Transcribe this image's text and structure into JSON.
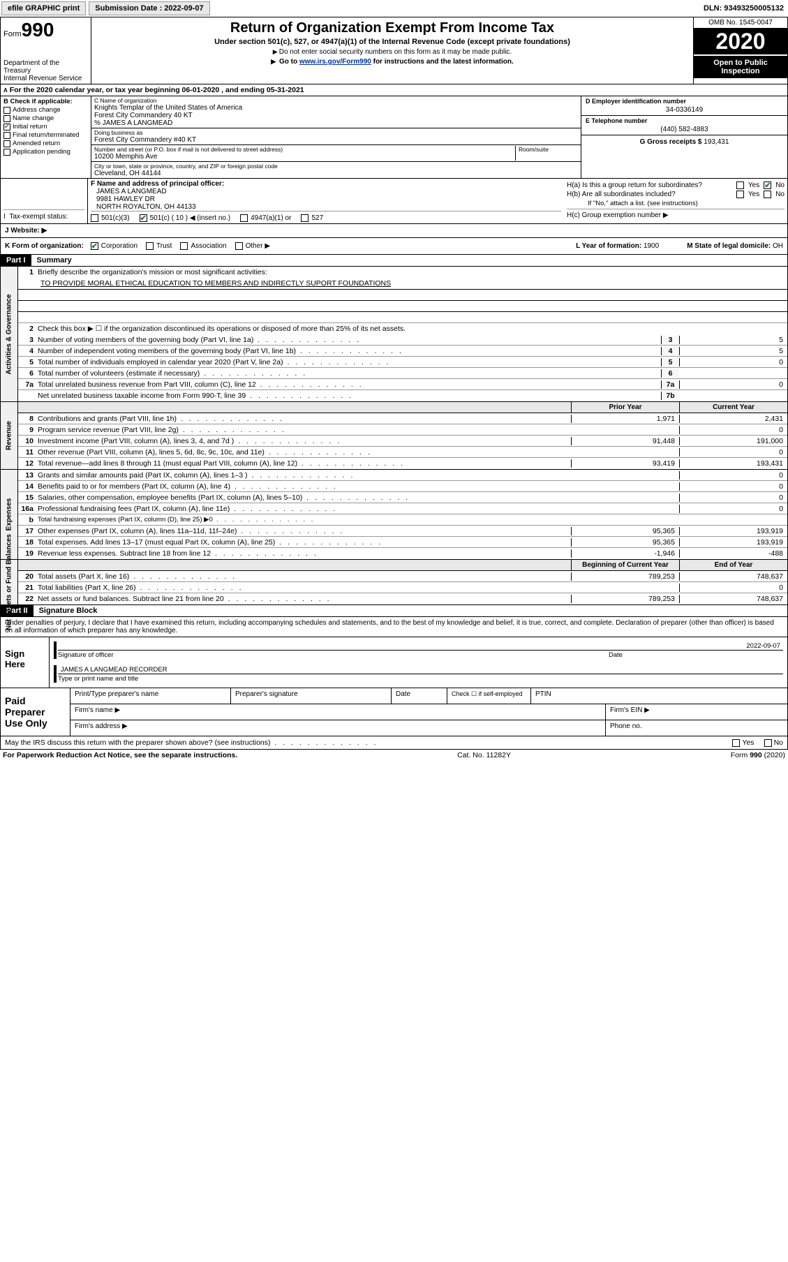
{
  "topbar": {
    "efile": "efile GRAPHIC print",
    "submission_label": "Submission Date : 2022-09-07",
    "dln": "DLN: 93493250005132"
  },
  "header": {
    "form_label": "Form",
    "form_number": "990",
    "dept": "Department of the Treasury\nInternal Revenue Service",
    "title": "Return of Organization Exempt From Income Tax",
    "subtitle": "Under section 501(c), 527, or 4947(a)(1) of the Internal Revenue Code (except private foundations)",
    "note1": "Do not enter social security numbers on this form as it may be made public.",
    "note2_prefix": "Go to ",
    "note2_link": "www.irs.gov/Form990",
    "note2_suffix": " for instructions and the latest information.",
    "omb": "OMB No. 1545-0047",
    "year": "2020",
    "open": "Open to Public Inspection"
  },
  "row_a": "For the 2020 calendar year, or tax year beginning 06-01-2020    , and ending 05-31-2021",
  "section_b": {
    "label": "B Check if applicable:",
    "items": [
      "Address change",
      "Name change",
      "Initial return",
      "Final return/terminated",
      "Amended return",
      "Application pending"
    ],
    "checked_idx": 2
  },
  "section_c": {
    "name_label": "C Name of organization",
    "name1": "Knights Templar of the United States of America",
    "name2": "Forest City Commandery 40 KT",
    "name3": "% JAMES A LANGMEAD",
    "dba_label": "Doing business as",
    "dba": "Forest City Commandery #40 KT",
    "addr_label": "Number and street (or P.O. box if mail is not delivered to street address)",
    "room_label": "Room/suite",
    "addr": "10200 Memphis Ave",
    "city_label": "City or town, state or province, country, and ZIP or foreign postal code",
    "city": "Cleveland, OH  44144"
  },
  "section_d": {
    "label": "D Employer identification number",
    "value": "34-0336149"
  },
  "section_e": {
    "label": "E Telephone number",
    "value": "(440) 582-4883"
  },
  "section_g": {
    "label": "G Gross receipts $",
    "value": "193,431"
  },
  "section_f": {
    "label": "F  Name and address of principal officer:",
    "name": "JAMES A LANGMEAD",
    "addr1": "9981 HAWLEY DR",
    "addr2": "NORTH ROYALTON, OH  44133"
  },
  "section_h": {
    "ha": "H(a)  Is this a group return for subordinates?",
    "hb": "H(b)  Are all subordinates included?",
    "hb_note": "If \"No,\" attach a list. (see instructions)",
    "hc": "H(c)  Group exemption number ▶",
    "yes": "Yes",
    "no": "No"
  },
  "row_i": {
    "label": "I   Tax-exempt status:",
    "opts": [
      "501(c)(3)",
      "501(c) ( 10 ) ◀ (insert no.)",
      "4947(a)(1) or",
      "527"
    ],
    "checked_idx": 1
  },
  "row_j": {
    "label": "J   Website: ▶"
  },
  "row_k": {
    "label": "K Form of organization:",
    "opts": [
      "Corporation",
      "Trust",
      "Association",
      "Other ▶"
    ],
    "checked_idx": 0,
    "l_label": "L Year of formation:",
    "l_val": "1900",
    "m_label": "M State of legal domicile:",
    "m_val": "OH"
  },
  "parts": {
    "p1": "Part I",
    "p1t": "Summary",
    "p2": "Part II",
    "p2t": "Signature Block"
  },
  "summary": {
    "q1": "Briefly describe the organization's mission or most significant activities:",
    "mission": "TO PROVIDE MORAL ETHICAL EDUCATION TO MEMBERS AND INDIRECTLY SUPORT FOUNDATIONS",
    "q2": "Check this box ▶ ☐  if the organization discontinued its operations or disposed of more than 25% of its net assets.",
    "lines_gov": [
      {
        "n": "3",
        "t": "Number of voting members of the governing body (Part VI, line 1a)",
        "m": "3",
        "v": "5"
      },
      {
        "n": "4",
        "t": "Number of independent voting members of the governing body (Part VI, line 1b)",
        "m": "4",
        "v": "5"
      },
      {
        "n": "5",
        "t": "Total number of individuals employed in calendar year 2020 (Part V, line 2a)",
        "m": "5",
        "v": "0"
      },
      {
        "n": "6",
        "t": "Total number of volunteers (estimate if necessary)",
        "m": "6",
        "v": ""
      },
      {
        "n": "7a",
        "t": "Total unrelated business revenue from Part VIII, column (C), line 12",
        "m": "7a",
        "v": "0"
      },
      {
        "n": "",
        "t": "Net unrelated business taxable income from Form 990-T, line 39",
        "m": "7b",
        "v": ""
      }
    ],
    "col_prior": "Prior Year",
    "col_curr": "Current Year",
    "lines_rev": [
      {
        "n": "8",
        "t": "Contributions and grants (Part VIII, line 1h)",
        "p": "1,971",
        "c": "2,431"
      },
      {
        "n": "9",
        "t": "Program service revenue (Part VIII, line 2g)",
        "p": "",
        "c": "0"
      },
      {
        "n": "10",
        "t": "Investment income (Part VIII, column (A), lines 3, 4, and 7d )",
        "p": "91,448",
        "c": "191,000"
      },
      {
        "n": "11",
        "t": "Other revenue (Part VIII, column (A), lines 5, 6d, 8c, 9c, 10c, and 11e)",
        "p": "",
        "c": "0"
      },
      {
        "n": "12",
        "t": "Total revenue—add lines 8 through 11 (must equal Part VIII, column (A), line 12)",
        "p": "93,419",
        "c": "193,431"
      }
    ],
    "lines_exp": [
      {
        "n": "13",
        "t": "Grants and similar amounts paid (Part IX, column (A), lines 1–3 )",
        "p": "",
        "c": "0"
      },
      {
        "n": "14",
        "t": "Benefits paid to or for members (Part IX, column (A), line 4)",
        "p": "",
        "c": "0"
      },
      {
        "n": "15",
        "t": "Salaries, other compensation, employee benefits (Part IX, column (A), lines 5–10)",
        "p": "",
        "c": "0"
      },
      {
        "n": "16a",
        "t": "Professional fundraising fees (Part IX, column (A), line 11e)",
        "p": "",
        "c": "0"
      },
      {
        "n": "b",
        "t": "Total fundraising expenses (Part IX, column (D), line 25) ▶0",
        "p": "—",
        "c": "—"
      },
      {
        "n": "17",
        "t": "Other expenses (Part IX, column (A), lines 11a–11d, 11f–24e)",
        "p": "95,365",
        "c": "193,919"
      },
      {
        "n": "18",
        "t": "Total expenses. Add lines 13–17 (must equal Part IX, column (A), line 25)",
        "p": "95,365",
        "c": "193,919"
      },
      {
        "n": "19",
        "t": "Revenue less expenses. Subtract line 18 from line 12",
        "p": "-1,946",
        "c": "-488"
      }
    ],
    "col_beg": "Beginning of Current Year",
    "col_end": "End of Year",
    "lines_na": [
      {
        "n": "20",
        "t": "Total assets (Part X, line 16)",
        "p": "789,253",
        "c": "748,637"
      },
      {
        "n": "21",
        "t": "Total liabilities (Part X, line 26)",
        "p": "",
        "c": "0"
      },
      {
        "n": "22",
        "t": "Net assets or fund balances. Subtract line 21 from line 20",
        "p": "789,253",
        "c": "748,637"
      }
    ]
  },
  "sidelabels": {
    "gov": "Activities & Governance",
    "rev": "Revenue",
    "exp": "Expenses",
    "na": "Net Assets or Fund Balances"
  },
  "sig": {
    "intro": "Under penalties of perjury, I declare that I have examined this return, including accompanying schedules and statements, and to the best of my knowledge and belief, it is true, correct, and complete. Declaration of preparer (other than officer) is based on all information of which preparer has any knowledge.",
    "sign_here": "Sign Here",
    "sig_officer": "Signature of officer",
    "date_lbl": "Date",
    "date_val": "2022-09-07",
    "name_title": "JAMES A LANGMEAD  RECORDER",
    "name_title_lbl": "Type or print name and title",
    "paid": "Paid Preparer Use Only",
    "p_name": "Print/Type preparer's name",
    "p_sig": "Preparer's signature",
    "p_date": "Date",
    "p_check": "Check ☐ if self-employed",
    "ptin": "PTIN",
    "firm_name": "Firm's name  ▶",
    "firm_ein": "Firm's EIN ▶",
    "firm_addr": "Firm's address ▶",
    "phone": "Phone no."
  },
  "may": "May the IRS discuss this return with the preparer shown above? (see instructions)",
  "foot": {
    "l": "For Paperwork Reduction Act Notice, see the separate instructions.",
    "c": "Cat. No. 11282Y",
    "r": "Form 990 (2020)"
  }
}
